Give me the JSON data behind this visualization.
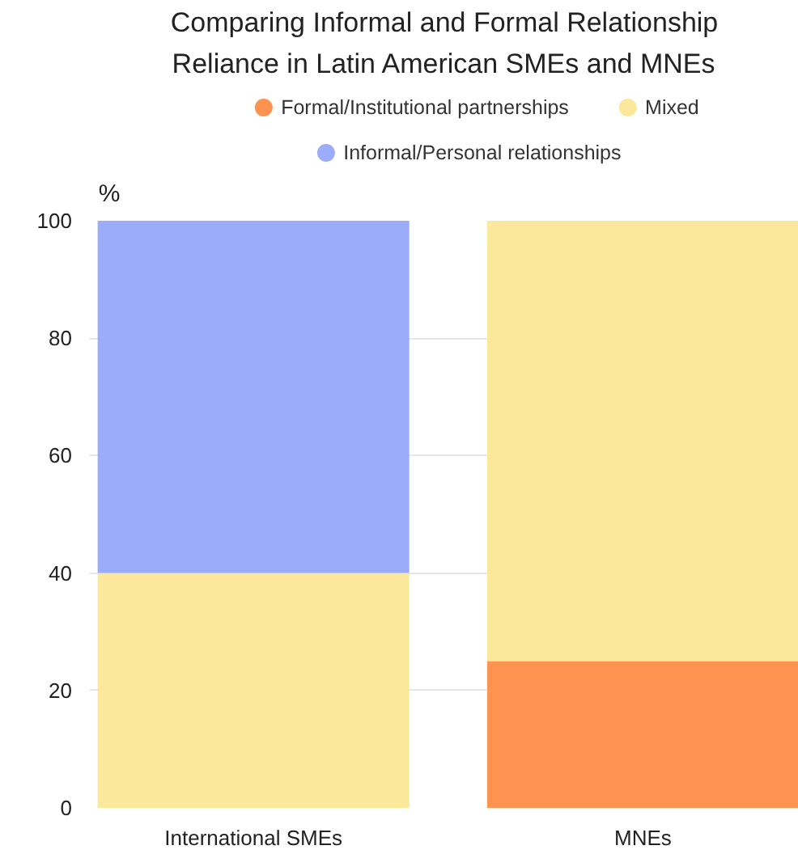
{
  "chart_data": {
    "type": "bar",
    "stacked": true,
    "title": "Comparing Informal and Formal Relationship\nReliance in Latin American SMEs and MNEs",
    "ylabel": "%",
    "categories": [
      "International SMEs",
      "MNEs"
    ],
    "series": [
      {
        "name": "Formal/Institutional partnerships",
        "color": "#fc9350",
        "values": [
          0,
          25
        ]
      },
      {
        "name": "Mixed",
        "color": "#fce89b",
        "values": [
          40,
          75
        ]
      },
      {
        "name": "Informal/Personal relationships",
        "color": "#9aacfa",
        "values": [
          60,
          0
        ]
      }
    ],
    "ylim": [
      0,
      100
    ],
    "yticks": [
      0,
      20,
      40,
      60,
      80,
      100
    ],
    "grid": "y",
    "legend": "top"
  }
}
